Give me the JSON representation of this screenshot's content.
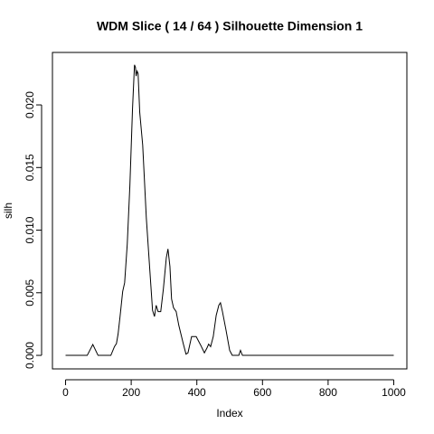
{
  "chart_data": {
    "type": "line",
    "title": "WDM Slice ( 14 / 64 )  Silhouette Dimension 1",
    "x_label": "Index",
    "y_label": "silh",
    "xlim": [
      -40,
      1040
    ],
    "ylim": [
      -0.00108,
      0.02419
    ],
    "xticks": [
      0,
      200,
      400,
      600,
      800,
      1000
    ],
    "yticks": [
      {
        "value": 0,
        "label": "0.000"
      },
      {
        "value": 0.005,
        "label": "0.005"
      },
      {
        "value": 0.01,
        "label": "0.010"
      },
      {
        "value": 0.015,
        "label": "0.015"
      },
      {
        "value": 0.02,
        "label": "0.020"
      }
    ],
    "series": [
      {
        "color": "#000000",
        "x": [
          0,
          66,
          83,
          99,
          138,
          149,
          155,
          160,
          166,
          174,
          180,
          188,
          196,
          204,
          210,
          213,
          215,
          218,
          221,
          226,
          235,
          246,
          257,
          265,
          271,
          276,
          282,
          290,
          298,
          307,
          312,
          318,
          323,
          329,
          337,
          345,
          359,
          367,
          373,
          384,
          398,
          412,
          423,
          431,
          436,
          442,
          450,
          459,
          467,
          472,
          478,
          489,
          500,
          508,
          528,
          533,
          539,
          1000
        ],
        "values": [
          0,
          0,
          0.00087,
          0,
          0,
          0.0007,
          0.00094,
          0.0017,
          0.0031,
          0.0051,
          0.0058,
          0.0089,
          0.0136,
          0.0197,
          0.0232,
          0.023,
          0.0223,
          0.0227,
          0.0225,
          0.0194,
          0.0168,
          0.011,
          0.0067,
          0.0036,
          0.0031,
          0.004,
          0.0035,
          0.0035,
          0.0053,
          0.0078,
          0.0085,
          0.0071,
          0.0045,
          0.0038,
          0.0035,
          0.0024,
          0.0009,
          0.0001,
          0.0002,
          0.0015,
          0.0015,
          0.0008,
          0.0002,
          0.0006,
          0.0009,
          0.0007,
          0.0015,
          0.0032,
          0.004,
          0.0042,
          0.0035,
          0.002,
          0.0004,
          0,
          0,
          0.0004,
          0,
          0
        ]
      }
    ]
  }
}
